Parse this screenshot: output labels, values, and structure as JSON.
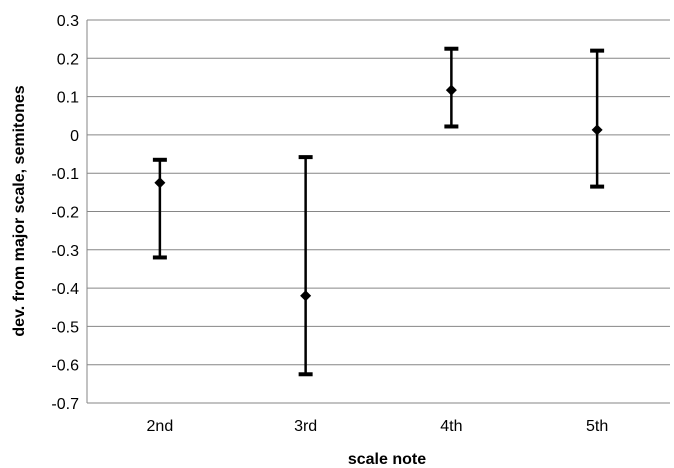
{
  "chart_data": {
    "type": "scatter",
    "error_bars": true,
    "categories": [
      "2nd",
      "3rd",
      "4th",
      "5th"
    ],
    "series": [
      {
        "values": [
          -0.125,
          -0.42,
          0.117,
          0.013
        ],
        "err_high": [
          -0.065,
          -0.058,
          0.225,
          0.22
        ],
        "err_low": [
          -0.32,
          -0.625,
          0.022,
          -0.135
        ]
      }
    ],
    "xlabel": "scale note",
    "ylabel": "dev. from major scale, semitones",
    "ylim": [
      -0.7,
      0.3
    ],
    "yticks": [
      "0.3",
      "0.2",
      "0.1",
      "0",
      "-0.1",
      "-0.2",
      "-0.3",
      "-0.4",
      "-0.5",
      "-0.6",
      "-0.7"
    ],
    "ytick_values": [
      0.3,
      0.2,
      0.1,
      0,
      -0.1,
      -0.2,
      -0.3,
      -0.4,
      -0.5,
      -0.6,
      -0.7
    ],
    "grid": true,
    "marker": "diamond",
    "color": "#000000",
    "grid_color": "#868686"
  }
}
